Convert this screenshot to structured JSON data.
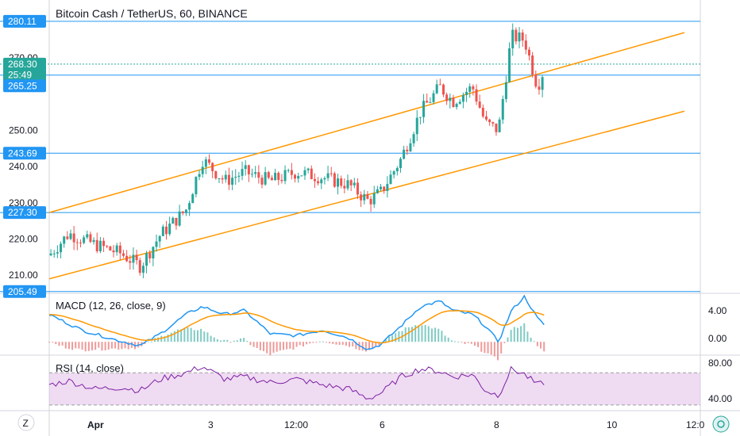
{
  "header": {
    "title": "Bitcoin Cash / TetherUS, 60, BINANCE"
  },
  "colors": {
    "up": "#26a69a",
    "down": "#ef5350",
    "hline": "#2196f3",
    "channel": "#ff9800",
    "macd": "#2196f3",
    "signal": "#ff9800",
    "rsi": "#7b1fa2",
    "rsi_band": "#e1bee7"
  },
  "price_axis": {
    "ticks": [
      "210.00",
      "220.00",
      "230.00",
      "240.00",
      "250.00",
      "270.00"
    ],
    "badges": [
      {
        "label": "280.11",
        "value": 280.11,
        "color": "#2196f3"
      },
      {
        "label": "268.30",
        "value": 268.3,
        "color": "#26a69a"
      },
      {
        "label": "25:49",
        "value": 265.3,
        "color": "#26a69a"
      },
      {
        "label": "265.25",
        "value": 262.3,
        "color": "#2196f3"
      },
      {
        "label": "243.69",
        "value": 243.69,
        "color": "#2196f3"
      },
      {
        "label": "227.30",
        "value": 227.3,
        "color": "#2196f3"
      },
      {
        "label": "205.49",
        "value": 205.49,
        "color": "#2196f3"
      }
    ]
  },
  "macd": {
    "label": "MACD (12, 26, close, 9)",
    "ticks": [
      "4.00",
      "0.00"
    ]
  },
  "rsi": {
    "label": "RSI (14, close)",
    "ticks": [
      "80.00",
      "40.00"
    ]
  },
  "time_axis": {
    "labels": [
      "Apr",
      "3",
      "12:00",
      "6",
      "8",
      "10",
      "12:0"
    ]
  },
  "toolbar": {
    "left_icon": "Z",
    "right_icon": "gear"
  },
  "chart_data": {
    "type": "candlestick",
    "title": "Bitcoin Cash / TetherUS, 60, BINANCE",
    "x_labels": [
      "Apr",
      "3",
      "12:00",
      "6",
      "8",
      "10",
      "12:0"
    ],
    "ylim": [
      205,
      286
    ],
    "horizontal_levels": [
      280.11,
      265.25,
      243.69,
      227.3,
      205.49
    ],
    "last_price": 268.3,
    "countdown": "25:49",
    "channel_lines": [
      {
        "from": [
          0,
          227.3
        ],
        "to": [
          1.0,
          277.0
        ]
      },
      {
        "from": [
          0,
          209.0
        ],
        "to": [
          1.0,
          255.3
        ]
      }
    ],
    "price_path": [
      [
        0,
        215.5
      ],
      [
        0.03,
        221.5
      ],
      [
        0.07,
        218.5
      ],
      [
        0.11,
        216.0
      ],
      [
        0.14,
        212.5
      ],
      [
        0.17,
        221.0
      ],
      [
        0.21,
        228.0
      ],
      [
        0.235,
        242.0
      ],
      [
        0.27,
        236.0
      ],
      [
        0.3,
        238.5
      ],
      [
        0.34,
        236.0
      ],
      [
        0.38,
        238.5
      ],
      [
        0.42,
        237.0
      ],
      [
        0.46,
        235.0
      ],
      [
        0.49,
        230.5
      ],
      [
        0.51,
        233.0
      ],
      [
        0.54,
        242.0
      ],
      [
        0.57,
        255.0
      ],
      [
        0.6,
        262.0
      ],
      [
        0.62,
        258.0
      ],
      [
        0.65,
        262.0
      ],
      [
        0.67,
        252.0
      ],
      [
        0.69,
        250.0
      ],
      [
        0.71,
        276.0
      ],
      [
        0.73,
        275.0
      ],
      [
        0.75,
        262.0
      ],
      [
        0.76,
        267.0
      ]
    ],
    "macd_range": [
      -1.5,
      6.0
    ],
    "macd_path": [
      [
        0,
        3.5
      ],
      [
        0.05,
        1.5
      ],
      [
        0.1,
        0.3
      ],
      [
        0.14,
        -0.5
      ],
      [
        0.17,
        1.0
      ],
      [
        0.21,
        3.5
      ],
      [
        0.235,
        4.5
      ],
      [
        0.27,
        3.5
      ],
      [
        0.3,
        4.0
      ],
      [
        0.34,
        1.0
      ],
      [
        0.38,
        0.8
      ],
      [
        0.42,
        1.5
      ],
      [
        0.46,
        0.5
      ],
      [
        0.49,
        -1.0
      ],
      [
        0.51,
        -0.3
      ],
      [
        0.54,
        2.0
      ],
      [
        0.57,
        4.5
      ],
      [
        0.6,
        5.2
      ],
      [
        0.62,
        4.0
      ],
      [
        0.65,
        3.5
      ],
      [
        0.67,
        2.0
      ],
      [
        0.69,
        0.0
      ],
      [
        0.71,
        4.0
      ],
      [
        0.73,
        5.8
      ],
      [
        0.75,
        3.0
      ],
      [
        0.76,
        2.2
      ]
    ],
    "rsi_range": [
      25,
      90
    ],
    "rsi_band": [
      30,
      70
    ],
    "rsi_path": [
      [
        0,
        55
      ],
      [
        0.03,
        60
      ],
      [
        0.07,
        50
      ],
      [
        0.11,
        52
      ],
      [
        0.14,
        48
      ],
      [
        0.17,
        62
      ],
      [
        0.21,
        70
      ],
      [
        0.235,
        78
      ],
      [
        0.27,
        62
      ],
      [
        0.3,
        65
      ],
      [
        0.34,
        58
      ],
      [
        0.38,
        62
      ],
      [
        0.42,
        55
      ],
      [
        0.46,
        50
      ],
      [
        0.49,
        38
      ],
      [
        0.51,
        45
      ],
      [
        0.54,
        65
      ],
      [
        0.57,
        75
      ],
      [
        0.6,
        72
      ],
      [
        0.62,
        65
      ],
      [
        0.65,
        68
      ],
      [
        0.67,
        48
      ],
      [
        0.69,
        42
      ],
      [
        0.71,
        75
      ],
      [
        0.73,
        68
      ],
      [
        0.75,
        55
      ],
      [
        0.76,
        58
      ]
    ]
  }
}
